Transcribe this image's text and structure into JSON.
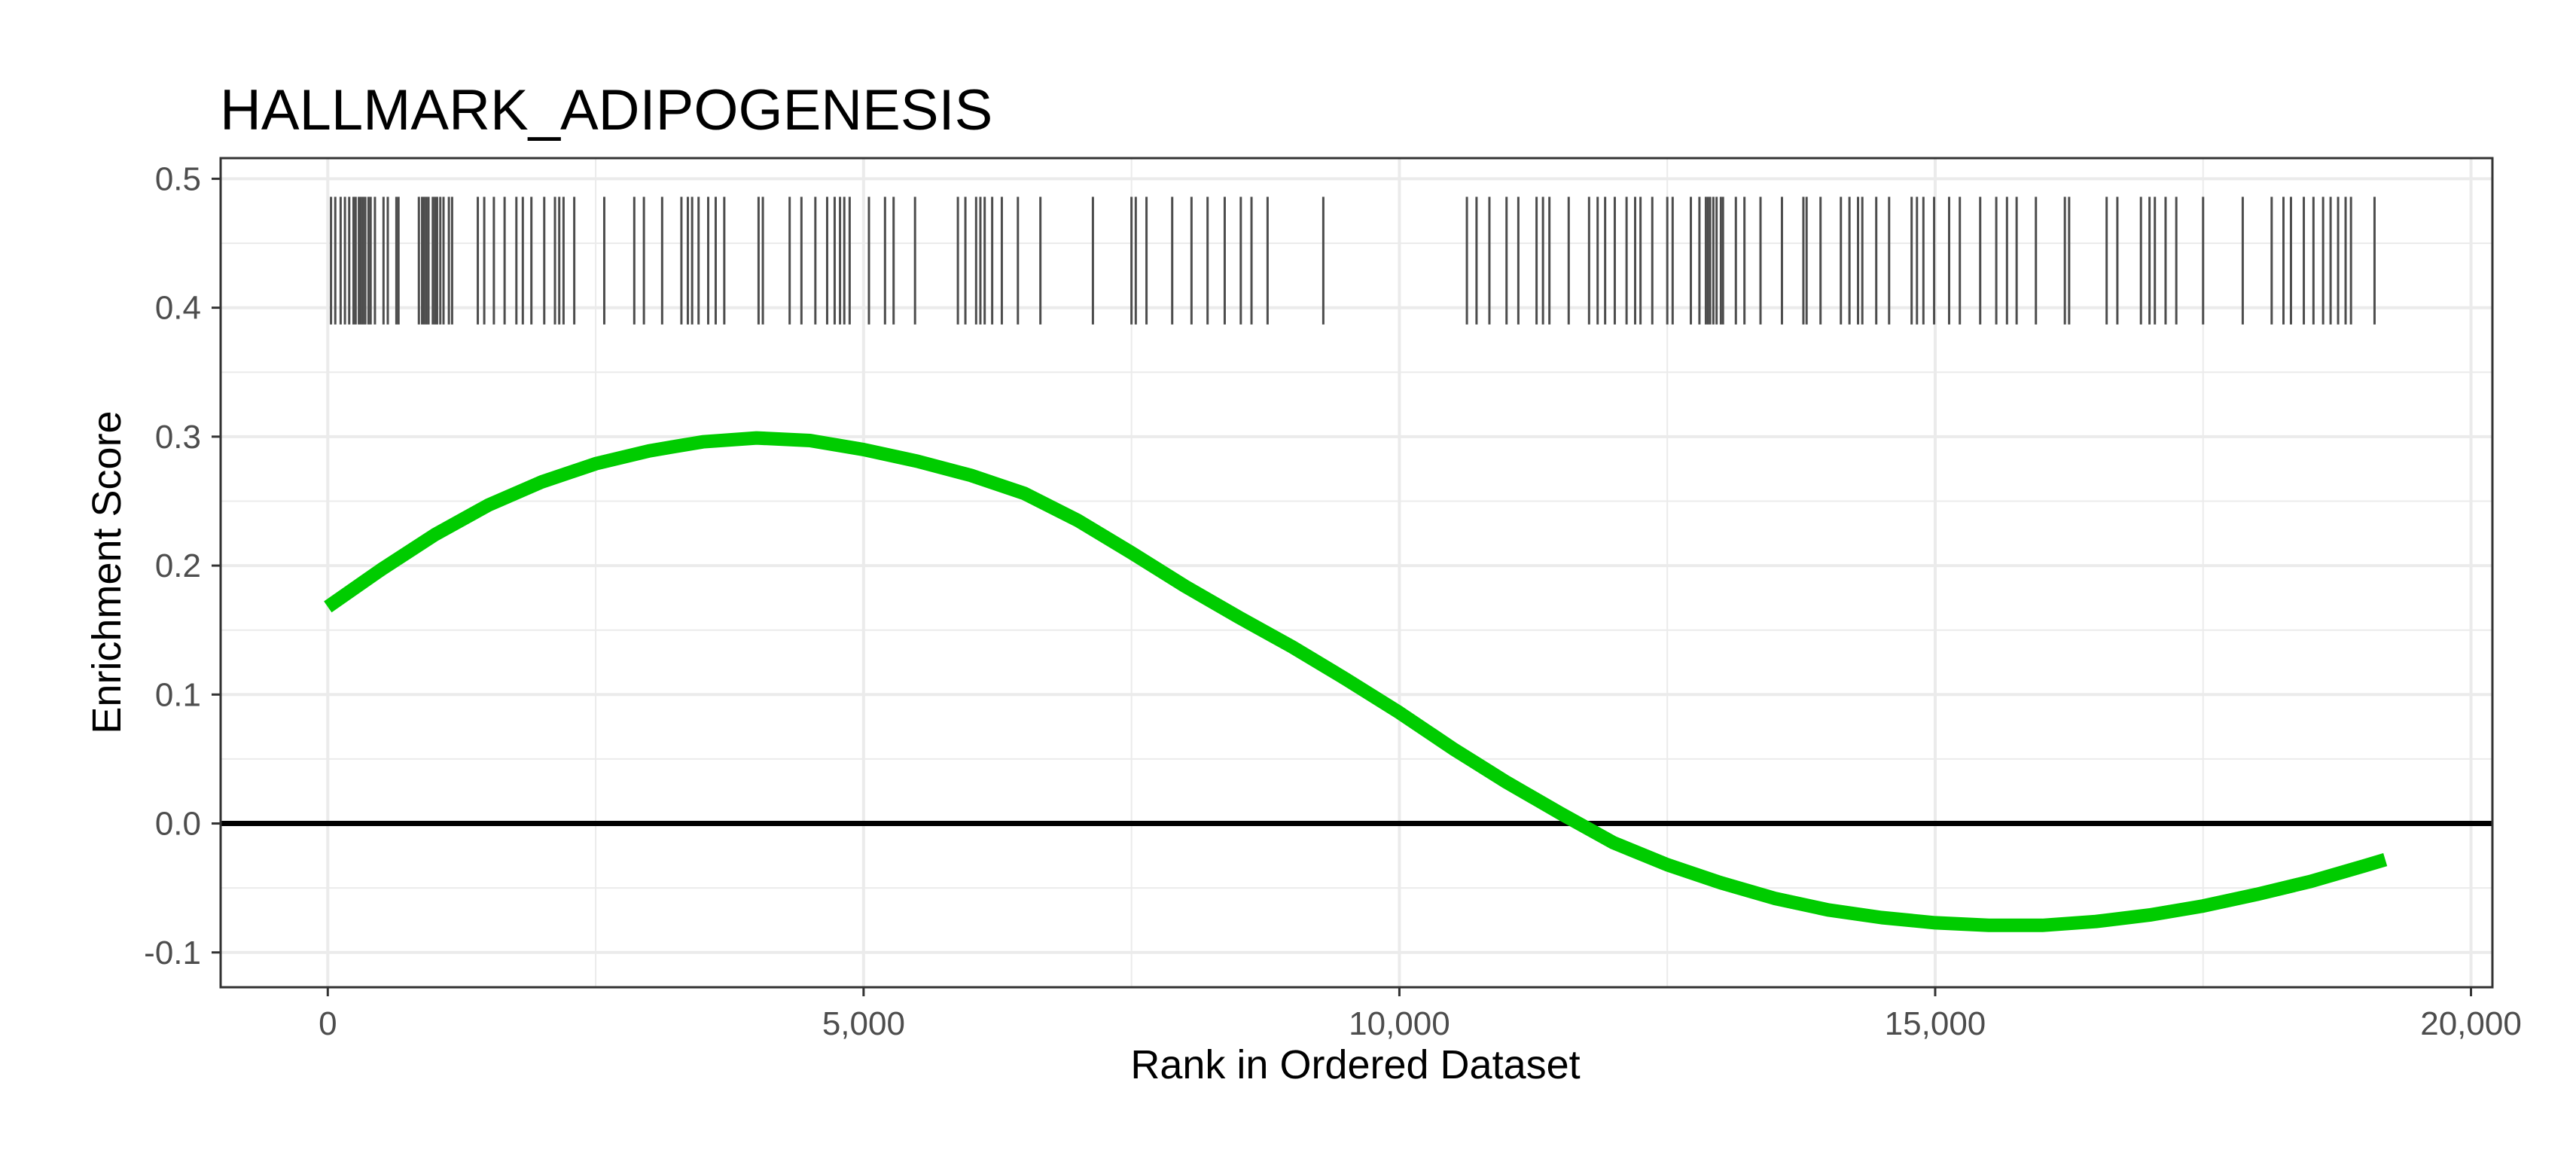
{
  "chart_data": {
    "type": "line",
    "title": "HALLMARK_ADIPOGENESIS",
    "xlabel": "Rank in Ordered Dataset",
    "ylabel": "Enrichment Score",
    "xlim": [
      -1000,
      20200
    ],
    "ylim": [
      -0.127,
      0.516
    ],
    "x_ticks": [
      0,
      5000,
      10000,
      15000,
      20000
    ],
    "x_tick_labels": [
      "0",
      "5,000",
      "10,000",
      "15,000",
      "20,000"
    ],
    "y_ticks": [
      -0.1,
      0.0,
      0.1,
      0.2,
      0.3,
      0.4,
      0.5
    ],
    "y_tick_labels": [
      "-0.1",
      "0.0",
      "0.1",
      "0.2",
      "0.3",
      "0.4",
      "0.5"
    ],
    "grid": true,
    "zero_line": 0.0,
    "series": [
      {
        "color": "#00cc00",
        "x": [
          0,
          500,
          1000,
          1500,
          2000,
          2500,
          3000,
          3500,
          4000,
          4500,
          5000,
          5500,
          6000,
          6500,
          7000,
          7500,
          8000,
          8500,
          9000,
          9500,
          10000,
          10500,
          11000,
          11500,
          12000,
          12500,
          13000,
          13500,
          14000,
          14500,
          15000,
          15500,
          16000,
          16500,
          17000,
          17500,
          18000,
          18500,
          19000,
          19200
        ],
        "values": [
          0.168,
          0.197,
          0.224,
          0.247,
          0.265,
          0.279,
          0.289,
          0.296,
          0.299,
          0.297,
          0.29,
          0.281,
          0.27,
          0.256,
          0.235,
          0.21,
          0.184,
          0.16,
          0.137,
          0.112,
          0.086,
          0.058,
          0.032,
          0.008,
          -0.015,
          -0.032,
          -0.046,
          -0.058,
          -0.067,
          -0.073,
          -0.077,
          -0.079,
          -0.079,
          -0.076,
          -0.071,
          -0.064,
          -0.055,
          -0.045,
          -0.033,
          -0.028
        ]
      }
    ],
    "gene_hits": {
      "y_range": [
        0.387,
        0.486
      ],
      "positions": [
        30,
        70,
        120,
        160,
        200,
        240,
        260,
        290,
        310,
        330,
        350,
        380,
        400,
        440,
        520,
        560,
        640,
        660,
        850,
        880,
        900,
        920,
        940,
        980,
        1000,
        1020,
        1050,
        1080,
        1130,
        1160,
        1400,
        1460,
        1550,
        1650,
        1760,
        1820,
        1900,
        2020,
        2120,
        2160,
        2200,
        2300,
        2580,
        2860,
        2950,
        3120,
        3300,
        3360,
        3400,
        3460,
        3550,
        3620,
        3700,
        4020,
        4060,
        4310,
        4420,
        4550,
        4660,
        4730,
        4780,
        4820,
        4870,
        5050,
        5200,
        5280,
        5480,
        5880,
        5950,
        6050,
        6090,
        6130,
        6200,
        6290,
        6440,
        6650,
        7140,
        7500,
        7540,
        7640,
        7880,
        8060,
        8210,
        8370,
        8520,
        8620,
        8770,
        9290,
        10630,
        10720,
        10840,
        11000,
        11110,
        11280,
        11340,
        11400,
        11580,
        11770,
        11850,
        11920,
        12010,
        12120,
        12200,
        12250,
        12360,
        12500,
        12550,
        12720,
        12800,
        12860,
        12880,
        12900,
        12930,
        12960,
        13000,
        13020,
        13140,
        13220,
        13370,
        13570,
        13770,
        13800,
        13930,
        14120,
        14200,
        14280,
        14320,
        14450,
        14570,
        14780,
        14830,
        14890,
        14990,
        15130,
        15230,
        15420,
        15570,
        15670,
        15760,
        15940,
        16210,
        16250,
        16600,
        16700,
        16920,
        17000,
        17050,
        17150,
        17250,
        17500,
        17870,
        18140,
        18250,
        18320,
        18440,
        18530,
        18620,
        18690,
        18760,
        18830,
        18880,
        19100
      ]
    }
  },
  "colors": {
    "series_line": "#00cc00",
    "zero_line": "#000000",
    "hit_marks": "#4d4d4d",
    "grid": "#ebebeb",
    "panel_border": "#333333"
  }
}
